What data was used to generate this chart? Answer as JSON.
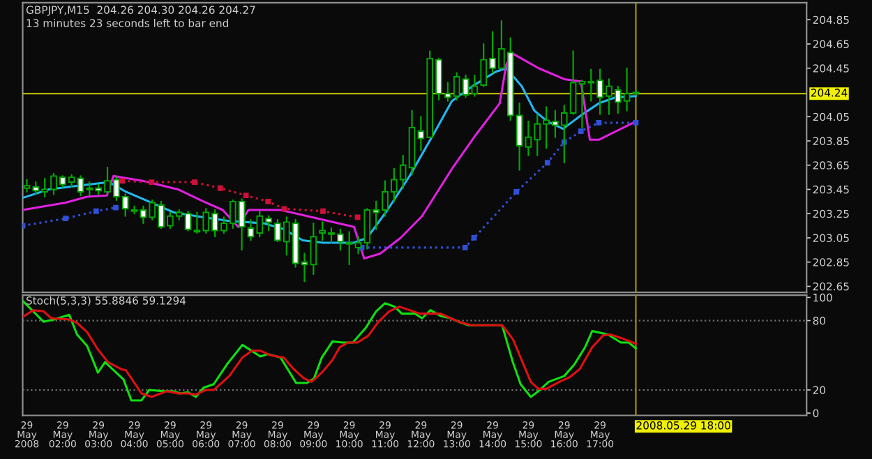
{
  "chart_data": [
    {
      "type": "candlestick",
      "title": "GBPJPY,M15  204.26 204.30 204.26 204.27",
      "annotations": [
        "13 minutes 23 seconds left to bar end"
      ],
      "x": [
        "2008-05-29T01:00",
        "2008-05-29T01:15",
        "2008-05-29T01:30",
        "2008-05-29T01:45",
        "2008-05-29T02:00",
        "2008-05-29T02:15",
        "2008-05-29T02:30",
        "2008-05-29T02:45",
        "2008-05-29T03:00",
        "2008-05-29T03:15",
        "2008-05-29T03:30",
        "2008-05-29T03:45",
        "2008-05-29T04:00",
        "2008-05-29T04:15",
        "2008-05-29T04:30",
        "2008-05-29T04:45",
        "2008-05-29T05:00",
        "2008-05-29T05:15",
        "2008-05-29T05:30",
        "2008-05-29T05:45",
        "2008-05-29T06:00",
        "2008-05-29T06:15",
        "2008-05-29T06:30",
        "2008-05-29T06:45",
        "2008-05-29T07:00",
        "2008-05-29T07:15",
        "2008-05-29T07:30",
        "2008-05-29T07:45",
        "2008-05-29T08:00",
        "2008-05-29T08:15",
        "2008-05-29T08:30",
        "2008-05-29T08:45",
        "2008-05-29T09:00",
        "2008-05-29T09:15",
        "2008-05-29T09:30",
        "2008-05-29T09:45",
        "2008-05-29T10:00",
        "2008-05-29T10:15",
        "2008-05-29T10:30",
        "2008-05-29T10:45",
        "2008-05-29T11:00",
        "2008-05-29T11:15",
        "2008-05-29T11:30",
        "2008-05-29T11:45",
        "2008-05-29T12:00",
        "2008-05-29T12:15",
        "2008-05-29T12:30",
        "2008-05-29T12:45",
        "2008-05-29T13:00",
        "2008-05-29T13:15",
        "2008-05-29T13:30",
        "2008-05-29T13:45",
        "2008-05-29T14:00",
        "2008-05-29T14:15",
        "2008-05-29T14:30",
        "2008-05-29T14:45",
        "2008-05-29T15:00",
        "2008-05-29T15:15",
        "2008-05-29T15:30",
        "2008-05-29T15:45",
        "2008-05-29T16:00",
        "2008-05-29T16:15",
        "2008-05-29T16:30",
        "2008-05-29T16:45",
        "2008-05-29T17:00",
        "2008-05-29T17:15",
        "2008-05-29T17:30",
        "2008-05-29T17:45",
        "2008-05-29T18:00"
      ],
      "ohlc": [
        [
          203.46,
          203.53,
          203.43,
          203.48
        ],
        [
          203.47,
          203.51,
          203.41,
          203.44
        ],
        [
          203.43,
          203.54,
          203.39,
          203.45
        ],
        [
          203.45,
          203.58,
          203.41,
          203.56
        ],
        [
          203.55,
          203.56,
          203.47,
          203.49
        ],
        [
          203.51,
          203.57,
          203.47,
          203.55
        ],
        [
          203.54,
          203.56,
          203.4,
          203.43
        ],
        [
          203.45,
          203.51,
          203.4,
          203.46
        ],
        [
          203.46,
          203.49,
          203.41,
          203.44
        ],
        [
          203.43,
          203.63,
          203.4,
          203.52
        ],
        [
          203.53,
          203.55,
          203.36,
          203.39
        ],
        [
          203.39,
          203.41,
          203.23,
          203.29
        ],
        [
          203.28,
          203.31,
          203.25,
          203.27
        ],
        [
          203.28,
          203.31,
          203.17,
          203.22
        ],
        [
          203.22,
          203.36,
          203.2,
          203.34
        ],
        [
          203.32,
          203.35,
          203.13,
          203.14
        ],
        [
          203.15,
          203.26,
          203.13,
          203.23
        ],
        [
          203.23,
          203.28,
          203.2,
          203.26
        ],
        [
          203.25,
          203.27,
          203.11,
          203.12
        ],
        [
          203.11,
          203.26,
          203.09,
          203.1
        ],
        [
          203.11,
          203.29,
          203.09,
          203.26
        ],
        [
          203.25,
          203.28,
          203.06,
          203.11
        ],
        [
          203.11,
          203.22,
          203.09,
          203.17
        ],
        [
          203.17,
          203.36,
          203.13,
          203.35
        ],
        [
          203.35,
          203.37,
          202.95,
          203.14
        ],
        [
          203.13,
          203.2,
          203.03,
          203.06
        ],
        [
          203.09,
          203.27,
          203.06,
          203.23
        ],
        [
          203.21,
          203.23,
          203.11,
          203.18
        ],
        [
          203.17,
          203.2,
          203.02,
          203.03
        ],
        [
          203.02,
          203.22,
          202.91,
          203.18
        ],
        [
          203.17,
          203.2,
          202.81,
          202.84
        ],
        [
          202.85,
          202.92,
          202.69,
          202.83
        ],
        [
          202.83,
          203.17,
          202.75,
          203.06
        ],
        [
          203.09,
          203.18,
          203.03,
          203.11
        ],
        [
          203.08,
          203.13,
          203.01,
          203.09
        ],
        [
          203.08,
          203.12,
          202.95,
          203.02
        ],
        [
          203.0,
          203.1,
          202.83,
          203.01
        ],
        [
          202.97,
          203.06,
          202.92,
          203.01
        ],
        [
          203.01,
          203.29,
          202.96,
          203.28
        ],
        [
          203.28,
          203.35,
          203.12,
          203.26
        ],
        [
          203.28,
          203.52,
          203.23,
          203.43
        ],
        [
          203.43,
          203.62,
          203.35,
          203.53
        ],
        [
          203.53,
          203.73,
          203.46,
          203.65
        ],
        [
          203.63,
          204.1,
          203.57,
          203.96
        ],
        [
          203.93,
          204.05,
          203.77,
          203.87
        ],
        [
          203.88,
          204.59,
          203.88,
          204.53
        ],
        [
          204.52,
          204.53,
          204.19,
          204.24
        ],
        [
          204.24,
          204.33,
          204.18,
          204.21
        ],
        [
          204.22,
          204.41,
          204.19,
          204.38
        ],
        [
          204.36,
          204.39,
          204.21,
          204.23
        ],
        [
          204.24,
          204.39,
          204.22,
          204.3
        ],
        [
          204.31,
          204.65,
          204.3,
          204.52
        ],
        [
          204.53,
          204.75,
          204.41,
          204.45
        ],
        [
          204.45,
          204.84,
          204.44,
          204.61
        ],
        [
          204.58,
          204.7,
          204.02,
          204.06
        ],
        [
          204.06,
          204.16,
          203.61,
          203.81
        ],
        [
          203.8,
          204.01,
          203.73,
          203.88
        ],
        [
          203.86,
          204.07,
          203.73,
          203.99
        ],
        [
          203.99,
          204.13,
          203.79,
          204.02
        ],
        [
          204.01,
          204.1,
          203.88,
          203.98
        ],
        [
          203.98,
          204.14,
          203.67,
          204.08
        ],
        [
          204.08,
          204.59,
          204.07,
          204.33
        ],
        [
          204.32,
          204.35,
          203.96,
          204.34
        ],
        [
          204.33,
          204.44,
          204.18,
          204.34
        ],
        [
          204.35,
          204.44,
          204.07,
          204.21
        ],
        [
          204.22,
          204.36,
          204.07,
          204.3
        ],
        [
          204.27,
          204.3,
          204.08,
          204.17
        ],
        [
          204.18,
          204.45,
          204.1,
          204.24
        ],
        [
          204.24,
          204.27,
          204.23,
          204.25
        ]
      ],
      "series": [
        {
          "type": "line",
          "color": "#22b8f0",
          "line_style": "solid",
          "x": [
            "2008-05-29T00:53",
            "2008-05-29T01:37",
            "2008-05-29T02:26",
            "2008-05-29T03:18",
            "2008-05-29T03:46",
            "2008-05-29T04:29",
            "2008-05-29T05:06",
            "2008-05-29T05:56",
            "2008-05-29T06:39",
            "2008-05-29T07:37",
            "2008-05-29T08:11",
            "2008-05-29T08:42",
            "2008-05-29T09:16",
            "2008-05-29T10:08",
            "2008-05-29T10:30",
            "2008-05-29T11:04",
            "2008-05-29T11:41",
            "2008-05-29T12:24",
            "2008-05-29T12:52",
            "2008-05-29T13:29",
            "2008-05-29T14:05",
            "2008-05-29T14:23",
            "2008-05-29T14:49",
            "2008-05-29T15:10",
            "2008-05-29T15:32",
            "2008-05-29T15:58",
            "2008-05-29T16:28",
            "2008-05-29T16:58",
            "2008-05-29T17:26",
            "2008-05-29T18:00"
          ],
          "values": [
            203.38,
            203.45,
            203.48,
            203.51,
            203.43,
            203.34,
            203.26,
            203.22,
            203.19,
            203.17,
            203.12,
            203.03,
            203.01,
            203.01,
            203.05,
            203.28,
            203.56,
            203.93,
            204.18,
            204.31,
            204.42,
            204.45,
            204.3,
            204.1,
            204.01,
            203.95,
            204.06,
            204.16,
            204.21,
            204.22
          ]
        },
        {
          "type": "line",
          "color": "#e020e0",
          "line_style": "solid",
          "x": [
            "2008-05-29T00:53",
            "2008-05-29T02:05",
            "2008-05-29T02:41",
            "2008-05-29T03:14",
            "2008-05-29T03:25",
            "2008-05-29T04:14",
            "2008-05-29T05:13",
            "2008-05-29T05:56",
            "2008-05-29T06:28",
            "2008-05-29T06:54",
            "2008-05-29T07:11",
            "2008-05-29T08:05",
            "2008-05-29T09:16",
            "2008-05-29T10:08",
            "2008-05-29T10:25",
            "2008-05-29T10:52",
            "2008-05-29T11:26",
            "2008-05-29T12:02",
            "2008-05-29T12:52",
            "2008-05-29T13:29",
            "2008-05-29T14:12",
            "2008-05-29T14:23",
            "2008-05-29T14:34",
            "2008-05-29T15:17",
            "2008-05-29T16:00",
            "2008-05-29T16:28",
            "2008-05-29T16:43",
            "2008-05-29T16:58",
            "2008-05-29T18:00"
          ],
          "values": [
            203.28,
            203.34,
            203.39,
            203.4,
            203.56,
            203.52,
            203.45,
            203.35,
            203.28,
            203.14,
            203.28,
            203.28,
            203.2,
            203.14,
            202.88,
            202.92,
            203.05,
            203.23,
            203.62,
            203.88,
            204.16,
            204.48,
            204.57,
            204.45,
            204.36,
            204.34,
            203.86,
            203.86,
            204.01
          ]
        },
        {
          "type": "line",
          "color": "#d0103a",
          "line_style": "dotted",
          "marker": "square",
          "x": [
            "2008-05-29T03:40",
            "2008-05-29T04:29",
            "2008-05-29T05:41",
            "2008-05-29T06:24",
            "2008-05-29T07:07",
            "2008-05-29T07:44",
            "2008-05-29T08:11",
            "2008-05-29T09:16",
            "2008-05-29T10:14"
          ],
          "values": [
            203.52,
            203.51,
            203.51,
            203.46,
            203.4,
            203.35,
            203.29,
            203.27,
            203.22
          ]
        },
        {
          "type": "line",
          "color": "#3050d8",
          "line_style": "dotted",
          "marker": "square",
          "x": [
            "2008-05-29T00:53",
            "2008-05-29T02:05",
            "2008-05-29T02:56",
            "2008-05-29T03:29",
            "2008-05-29T07:00",
            "2008-05-29T10:21",
            "2008-05-29T13:14",
            "2008-05-29T13:29",
            "2008-05-29T14:40",
            "2008-05-29T15:32",
            "2008-05-29T16:00",
            "2008-05-29T16:28",
            "2008-05-29T16:58",
            "2008-05-29T18:00"
          ],
          "values": [
            203.15,
            203.21,
            203.27,
            203.3,
            null,
            202.97,
            202.97,
            203.05,
            203.43,
            203.67,
            203.84,
            203.93,
            204.0,
            204.0
          ]
        }
      ],
      "xlim": [
        "2008-05-29T00:53",
        "2008-05-29T22:46"
      ],
      "ylim": [
        202.6,
        204.99
      ],
      "yticks": [
        202.65,
        202.85,
        203.05,
        203.25,
        203.45,
        203.65,
        203.85,
        204.05,
        204.45,
        204.65,
        204.85
      ],
      "tick_labels": "y",
      "ref_lines": [
        {
          "axis": "y",
          "value": 204.24,
          "label": "204.24",
          "color": "#c8c800",
          "line_style": "solid"
        },
        {
          "axis": "x",
          "value": "2008-05-29T18:00",
          "label": null,
          "color": "#a09000",
          "line_style": "solid"
        }
      ]
    },
    {
      "type": "line",
      "title": "Stoch(5,3,3) 55.8846 59.1294",
      "series": [
        {
          "color": "#10e010",
          "x": [
            "2008-05-29T00:53",
            "2008-05-29T01:28",
            "2008-05-29T01:46",
            "2008-05-29T02:11",
            "2008-05-29T02:24",
            "2008-05-29T02:41",
            "2008-05-29T02:59",
            "2008-05-29T03:11",
            "2008-05-29T03:42",
            "2008-05-29T03:55",
            "2008-05-29T04:12",
            "2008-05-29T04:25",
            "2008-05-29T04:47",
            "2008-05-29T05:04",
            "2008-05-29T05:17",
            "2008-05-29T05:30",
            "2008-05-29T05:43",
            "2008-05-29T05:56",
            "2008-05-29T06:13",
            "2008-05-29T06:35",
            "2008-05-29T07:01",
            "2008-05-29T07:31",
            "2008-05-29T07:44",
            "2008-05-29T08:05",
            "2008-05-29T08:31",
            "2008-05-29T08:49",
            "2008-05-29T09:01",
            "2008-05-29T09:14",
            "2008-05-29T09:32",
            "2008-05-29T09:49",
            "2008-05-29T10:06",
            "2008-05-29T10:28",
            "2008-05-29T10:45",
            "2008-05-29T11:00",
            "2008-05-29T11:16",
            "2008-05-29T11:28",
            "2008-05-29T11:50",
            "2008-05-29T12:02",
            "2008-05-29T12:16",
            "2008-05-29T12:33",
            "2008-05-29T12:50",
            "2008-05-29T13:03",
            "2008-05-29T13:20",
            "2008-05-29T14:16",
            "2008-05-29T14:34",
            "2008-05-29T14:47",
            "2008-05-29T15:04",
            "2008-05-29T15:17",
            "2008-05-29T15:34",
            "2008-05-29T16:00",
            "2008-05-29T16:17",
            "2008-05-29T16:35",
            "2008-05-29T16:47",
            "2008-05-29T17:13",
            "2008-05-29T17:35",
            "2008-05-29T17:48",
            "2008-05-29T18:00"
          ],
          "values": [
            97,
            79,
            81,
            85,
            68,
            58,
            35,
            44,
            29,
            11,
            11,
            20,
            19,
            19,
            17,
            18,
            14,
            22,
            25,
            42,
            59,
            49,
            51,
            48,
            26,
            26,
            30,
            48,
            62,
            61,
            61,
            74,
            88,
            95,
            92,
            86,
            86,
            82,
            89,
            84,
            82,
            79,
            76,
            76,
            44,
            25,
            14,
            19,
            27,
            32,
            42,
            57,
            71,
            68,
            61,
            61,
            56
          ]
        },
        {
          "color": "#e01010",
          "x": [
            "2008-05-29T00:53",
            "2008-05-29T01:11",
            "2008-05-29T01:28",
            "2008-05-29T01:41",
            "2008-05-29T02:11",
            "2008-05-29T02:24",
            "2008-05-29T02:41",
            "2008-05-29T02:59",
            "2008-05-29T03:16",
            "2008-05-29T03:38",
            "2008-05-29T03:46",
            "2008-05-29T03:59",
            "2008-05-29T04:12",
            "2008-05-29T04:29",
            "2008-05-29T04:55",
            "2008-05-29T05:13",
            "2008-05-29T05:30",
            "2008-05-29T05:43",
            "2008-05-29T06:00",
            "2008-05-29T06:13",
            "2008-05-29T06:39",
            "2008-05-29T07:01",
            "2008-05-29T07:17",
            "2008-05-29T07:31",
            "2008-05-29T07:48",
            "2008-05-29T08:10",
            "2008-05-29T08:27",
            "2008-05-29T08:44",
            "2008-05-29T08:57",
            "2008-05-29T09:14",
            "2008-05-29T09:32",
            "2008-05-29T09:44",
            "2008-05-29T09:58",
            "2008-05-29T10:14",
            "2008-05-29T10:32",
            "2008-05-29T10:49",
            "2008-05-29T11:07",
            "2008-05-29T11:24",
            "2008-05-29T11:41",
            "2008-05-29T11:58",
            "2008-05-29T12:16",
            "2008-05-29T12:33",
            "2008-05-29T12:50",
            "2008-05-29T13:03",
            "2008-05-29T13:25",
            "2008-05-29T14:16",
            "2008-05-29T14:34",
            "2008-05-29T14:47",
            "2008-05-29T15:04",
            "2008-05-29T15:17",
            "2008-05-29T15:30",
            "2008-05-29T15:52",
            "2008-05-29T16:09",
            "2008-05-29T16:26",
            "2008-05-29T16:47",
            "2008-05-29T17:05",
            "2008-05-29T17:17",
            "2008-05-29T17:35",
            "2008-05-29T18:00"
          ],
          "values": [
            83,
            89,
            88,
            82,
            81,
            78,
            70,
            55,
            44,
            38,
            37,
            27,
            17,
            14,
            19,
            17,
            17,
            16,
            20,
            20,
            32,
            48,
            54,
            54,
            50,
            48,
            38,
            30,
            27,
            35,
            46,
            57,
            61,
            61,
            67,
            79,
            88,
            92,
            89,
            86,
            86,
            86,
            82,
            79,
            76,
            76,
            64,
            48,
            27,
            21,
            21,
            27,
            31,
            38,
            57,
            67,
            68,
            65,
            60
          ]
        }
      ],
      "xlim": [
        "2008-05-29T00:53",
        "2008-05-29T22:46"
      ],
      "ylim": [
        -2,
        102
      ],
      "yticks": [
        0,
        20,
        80,
        100
      ],
      "xticks": [
        {
          "value": "2008-05-29T01:00",
          "label": "29 May 2008"
        },
        {
          "value": "2008-05-29T02:00",
          "label": "29 May 02:00"
        },
        {
          "value": "2008-05-29T03:00",
          "label": "29 May 03:00"
        },
        {
          "value": "2008-05-29T04:00",
          "label": "29 May 04:00"
        },
        {
          "value": "2008-05-29T05:00",
          "label": "29 May 05:00"
        },
        {
          "value": "2008-05-29T06:00",
          "label": "29 May 06:00"
        },
        {
          "value": "2008-05-29T07:00",
          "label": "29 May 07:00"
        },
        {
          "value": "2008-05-29T08:00",
          "label": "29 May 08:00"
        },
        {
          "value": "2008-05-29T09:00",
          "label": "29 May 09:00"
        },
        {
          "value": "2008-05-29T10:00",
          "label": "29 May 10:00"
        },
        {
          "value": "2008-05-29T11:00",
          "label": "29 May 11:00"
        },
        {
          "value": "2008-05-29T12:00",
          "label": "29 May 12:00"
        },
        {
          "value": "2008-05-29T13:00",
          "label": "29 May 13:00"
        },
        {
          "value": "2008-05-29T14:00",
          "label": "29 May 14:00"
        },
        {
          "value": "2008-05-29T15:00",
          "label": "29 May 15:00"
        },
        {
          "value": "2008-05-29T16:00",
          "label": "29 May 16:00"
        },
        {
          "value": "2008-05-29T17:00",
          "label": "29 May 17:00"
        }
      ],
      "ref_lines": [
        {
          "axis": "y",
          "value": 80,
          "label": null,
          "color": "#707070",
          "line_style": "dotted"
        },
        {
          "axis": "y",
          "value": 20,
          "label": null,
          "color": "#707070",
          "line_style": "dotted"
        },
        {
          "axis": "x",
          "value": "2008-05-29T18:00",
          "label": "2008.05.29 18:00",
          "color": "#a09000",
          "line_style": "solid"
        }
      ]
    }
  ]
}
